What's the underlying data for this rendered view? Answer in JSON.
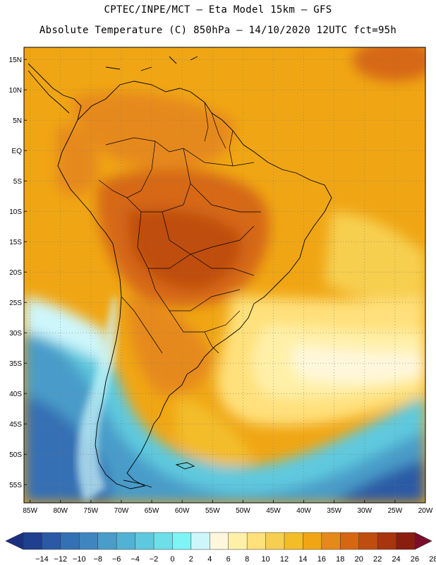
{
  "header": {
    "line1": "CPTEC/INPE/MCT –  Eta Model 15km – GFS",
    "line2": "Absolute Temperature (C) 850hPa – 14/10/2020 12UTC fct=95h"
  },
  "map": {
    "lat_labels": [
      "15N",
      "10N",
      "5N",
      "EQ",
      "5S",
      "10S",
      "15S",
      "20S",
      "25S",
      "30S",
      "35S",
      "40S",
      "45S",
      "50S",
      "55S"
    ],
    "lat_values": [
      15,
      10,
      5,
      0,
      -5,
      -10,
      -15,
      -20,
      -25,
      -30,
      -35,
      -40,
      -45,
      -50,
      -55
    ],
    "lon_labels": [
      "85W",
      "80W",
      "75W",
      "70W",
      "65W",
      "60W",
      "55W",
      "50W",
      "45W",
      "40W",
      "35W",
      "30W",
      "25W",
      "20W"
    ],
    "lon_values": [
      -85,
      -80,
      -75,
      -70,
      -65,
      -60,
      -55,
      -50,
      -45,
      -40,
      -35,
      -30,
      -25,
      -20
    ],
    "gridlines": "dotted",
    "extent": {
      "lon_min": -86,
      "lon_max": -20,
      "lat_min": -58,
      "lat_max": 17
    }
  },
  "colorbar": {
    "labels": [
      "-14",
      "-12",
      "-10",
      "-8",
      "-6",
      "-4",
      "-2",
      "0",
      "2",
      "4",
      "6",
      "8",
      "10",
      "12",
      "14",
      "16",
      "18",
      "20",
      "22",
      "24",
      "26",
      "28"
    ],
    "colors": [
      "#1f3f8f",
      "#2a5aa6",
      "#3470b4",
      "#3f86c0",
      "#4a9cc9",
      "#52b2d4",
      "#5ec9de",
      "#6ddfe8",
      "#7ff4f4",
      "#cdf6fb",
      "#fff7dc",
      "#fff0a8",
      "#ffe07a",
      "#f7cf50",
      "#f3bd2a",
      "#f0a614",
      "#e6891b",
      "#d66712",
      "#bf4d10",
      "#a8350d",
      "#8a1e0e"
    ],
    "under_color": "#1a2f80",
    "over_color": "#7a0d2a"
  }
}
